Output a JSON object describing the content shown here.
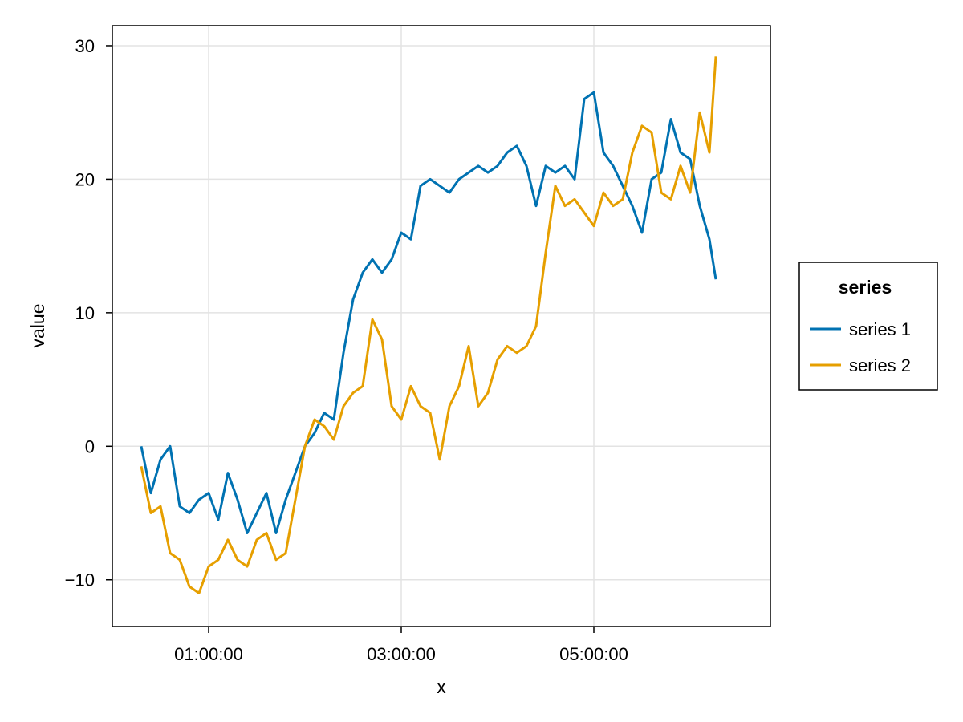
{
  "chart_data": {
    "type": "line",
    "xlabel": "x",
    "ylabel": "value",
    "x_axis": {
      "kind": "time",
      "range": [
        "00:00:00",
        "06:50:00"
      ],
      "ticks": [
        "01:00:00",
        "03:00:00",
        "05:00:00"
      ]
    },
    "y_axis": {
      "range": [
        -13.5,
        31.5
      ],
      "ticks": [
        -10,
        0,
        10,
        20,
        30
      ],
      "tick_labels": [
        "−10",
        "0",
        "10",
        "20",
        "30"
      ]
    },
    "grid": true,
    "legend": {
      "title": "series",
      "placement": "right"
    },
    "series": [
      {
        "name": "series 1",
        "color": "#0072b2",
        "x": [
          "00:18:00",
          "00:24:00",
          "00:30:00",
          "00:36:00",
          "00:42:00",
          "00:48:00",
          "00:54:00",
          "01:00:00",
          "01:06:00",
          "01:12:00",
          "01:18:00",
          "01:24:00",
          "01:30:00",
          "01:36:00",
          "01:42:00",
          "01:48:00",
          "01:54:00",
          "02:00:00",
          "02:06:00",
          "02:12:00",
          "02:18:00",
          "02:24:00",
          "02:30:00",
          "02:36:00",
          "02:42:00",
          "02:48:00",
          "02:54:00",
          "03:00:00",
          "03:06:00",
          "03:12:00",
          "03:18:00",
          "03:24:00",
          "03:30:00",
          "03:36:00",
          "03:42:00",
          "03:48:00",
          "03:54:00",
          "04:00:00",
          "04:06:00",
          "04:12:00",
          "04:18:00",
          "04:24:00",
          "04:30:00",
          "04:36:00",
          "04:42:00",
          "04:48:00",
          "04:54:00",
          "05:00:00",
          "05:06:00",
          "05:12:00",
          "05:18:00",
          "05:24:00",
          "05:30:00",
          "05:36:00",
          "05:42:00",
          "05:48:00",
          "05:54:00",
          "06:00:00",
          "06:06:00",
          "06:12:00",
          "06:16:00"
        ],
        "values": [
          0,
          -3.5,
          -1,
          0,
          -4.5,
          -5,
          -4,
          -3.5,
          -5.5,
          -2,
          -4,
          -6.5,
          -5,
          -3.5,
          -6.5,
          -4,
          -2,
          0,
          1,
          2.5,
          2,
          7,
          11,
          13,
          14,
          13,
          14,
          16,
          15.5,
          19.5,
          20,
          19.5,
          19,
          20,
          20.5,
          21,
          20.5,
          21,
          22,
          22.5,
          21,
          18,
          21,
          20.5,
          21,
          20,
          26,
          26.5,
          22,
          21,
          19.5,
          18,
          16,
          20,
          20.5,
          24.5,
          22,
          21.5,
          18,
          15.5,
          12.5
        ]
      },
      {
        "name": "series 2",
        "color": "#e69f00",
        "x": [
          "00:18:00",
          "00:24:00",
          "00:30:00",
          "00:36:00",
          "00:42:00",
          "00:48:00",
          "00:54:00",
          "01:00:00",
          "01:06:00",
          "01:12:00",
          "01:18:00",
          "01:24:00",
          "01:30:00",
          "01:36:00",
          "01:42:00",
          "01:48:00",
          "01:54:00",
          "02:00:00",
          "02:06:00",
          "02:12:00",
          "02:18:00",
          "02:24:00",
          "02:30:00",
          "02:36:00",
          "02:42:00",
          "02:48:00",
          "02:54:00",
          "03:00:00",
          "03:06:00",
          "03:12:00",
          "03:18:00",
          "03:24:00",
          "03:30:00",
          "03:36:00",
          "03:42:00",
          "03:48:00",
          "03:54:00",
          "04:00:00",
          "04:06:00",
          "04:12:00",
          "04:18:00",
          "04:24:00",
          "04:30:00",
          "04:36:00",
          "04:42:00",
          "04:48:00",
          "04:54:00",
          "05:00:00",
          "05:06:00",
          "05:12:00",
          "05:18:00",
          "05:24:00",
          "05:30:00",
          "05:36:00",
          "05:42:00",
          "05:48:00",
          "05:54:00",
          "06:00:00",
          "06:06:00",
          "06:12:00",
          "06:16:00"
        ],
        "values": [
          -1.5,
          -5,
          -4.5,
          -8,
          -8.5,
          -10.5,
          -11,
          -9,
          -8.5,
          -7,
          -8.5,
          -9,
          -7,
          -6.5,
          -8.5,
          -8,
          -4,
          0,
          2,
          1.5,
          0.5,
          3,
          4,
          4.5,
          9.5,
          8,
          3,
          2,
          4.5,
          3,
          2.5,
          -1,
          3,
          4.5,
          7.5,
          3,
          4,
          6.5,
          7.5,
          7,
          7.5,
          9,
          14.5,
          19.5,
          18,
          18.5,
          17.5,
          16.5,
          19,
          18,
          18.5,
          22,
          24,
          23.5,
          19,
          18.5,
          21,
          19,
          25,
          22,
          29.2
        ]
      }
    ]
  }
}
